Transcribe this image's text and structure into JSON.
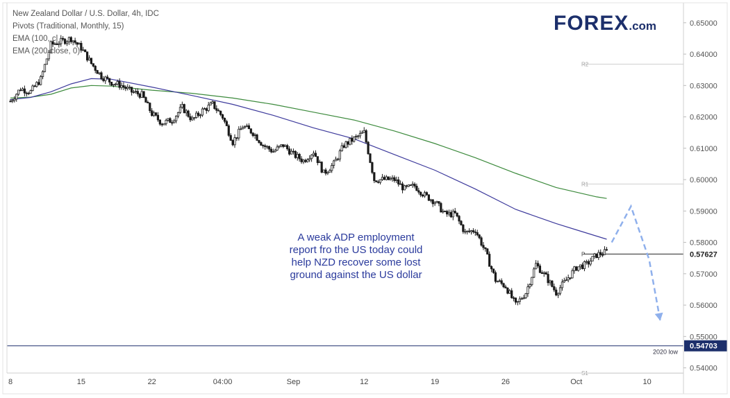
{
  "legend": {
    "line1": "New Zealand Dollar / U.S. Dollar, 4h, IDC",
    "line2": "Pivots (Traditional, Monthly, 15)",
    "line3": "EMA (100, cl",
    "line4": "EMA (200 close, 0)"
  },
  "logo": {
    "main": "FOREX",
    "suffix": ".com"
  },
  "annotation": {
    "lines": [
      "A weak ADP employment",
      "report fro the US today could",
      "help NZD recover some lost",
      "ground against the US dollar"
    ]
  },
  "colors": {
    "ema100": "#3d3a9c",
    "ema200": "#3c8a3c",
    "candle": "#1a1a1a",
    "forecast_arrow": "#8fb0ec",
    "low_line": "#1c2f6b",
    "pivot_label": "#a0a0a0"
  },
  "chart_data": {
    "type": "candlestick",
    "y_axis": {
      "range": [
        0.5357,
        0.6546
      ],
      "ticks": [
        "0.65000",
        "0.64000",
        "0.63000",
        "0.62000",
        "0.61000",
        "0.60000",
        "0.59000",
        "0.58000",
        "0.57000",
        "0.56000",
        "0.55000",
        "0.54000"
      ],
      "tick_values": [
        0.65,
        0.64,
        0.63,
        0.62,
        0.61,
        0.6,
        0.59,
        0.58,
        0.57,
        0.56,
        0.55,
        0.54
      ]
    },
    "x_axis": {
      "ticks": [
        "8",
        "15",
        "22",
        "04:00",
        "Sep",
        "12",
        "19",
        "26",
        "Oct",
        "10"
      ],
      "tick_positions": [
        0,
        7,
        14,
        21,
        28,
        35,
        42,
        49,
        56,
        63
      ]
    },
    "price_label": {
      "text": "0.57627",
      "value": 0.57627
    },
    "low_2020": {
      "label": "2020 low",
      "price_text": "0.54703",
      "value": 0.54703
    },
    "pivots": [
      {
        "label": "R2",
        "value": 0.6368,
        "from_day": 56.7
      },
      {
        "label": "R1",
        "value": 0.5986,
        "from_day": 56.7
      },
      {
        "label": "P",
        "value": 0.57627,
        "from_day": 56.7
      },
      {
        "label": "S1",
        "value": 0.5383,
        "from_day": 56.7
      }
    ],
    "close_path_days": [
      0,
      1,
      2,
      3,
      4,
      5,
      6,
      7,
      8,
      9,
      10,
      11,
      12,
      13,
      14,
      15,
      16,
      17,
      18,
      19,
      20,
      21,
      22,
      23,
      24,
      25,
      26,
      27,
      28,
      29,
      30,
      31,
      32,
      33,
      34,
      35,
      36,
      37,
      38,
      39,
      40,
      41,
      42,
      43,
      44,
      45,
      46,
      47,
      48,
      49,
      50,
      51,
      52,
      53,
      54,
      55,
      56,
      57,
      58,
      59
    ],
    "close_path_prices": [
      0.625,
      0.629,
      0.628,
      0.632,
      0.643,
      0.644,
      0.645,
      0.642,
      0.637,
      0.633,
      0.631,
      0.63,
      0.628,
      0.627,
      0.621,
      0.618,
      0.619,
      0.623,
      0.619,
      0.622,
      0.624,
      0.62,
      0.612,
      0.617,
      0.615,
      0.611,
      0.609,
      0.611,
      0.608,
      0.606,
      0.609,
      0.602,
      0.605,
      0.611,
      0.613,
      0.615,
      0.6,
      0.6,
      0.6,
      0.597,
      0.598,
      0.595,
      0.593,
      0.589,
      0.589,
      0.583,
      0.584,
      0.577,
      0.568,
      0.566,
      0.56,
      0.564,
      0.573,
      0.569,
      0.564,
      0.568,
      0.572,
      0.573,
      0.576,
      0.577
    ],
    "ema100_days": [
      0,
      2,
      4,
      6,
      8,
      10,
      14,
      18,
      22,
      26,
      30,
      34,
      38,
      42,
      46,
      50,
      54,
      56,
      58,
      59
    ],
    "ema100_prices": [
      0.6255,
      0.6262,
      0.628,
      0.6305,
      0.6322,
      0.632,
      0.6295,
      0.6268,
      0.624,
      0.6205,
      0.6165,
      0.613,
      0.608,
      0.603,
      0.597,
      0.5905,
      0.586,
      0.584,
      0.582,
      0.581
    ],
    "ema200_days": [
      0,
      2,
      4,
      6,
      8,
      10,
      14,
      18,
      22,
      26,
      30,
      34,
      38,
      42,
      46,
      50,
      54,
      56,
      58,
      59
    ],
    "ema200_prices": [
      0.626,
      0.6263,
      0.6272,
      0.6292,
      0.63,
      0.6298,
      0.6285,
      0.6275,
      0.626,
      0.624,
      0.6215,
      0.619,
      0.6155,
      0.6115,
      0.607,
      0.602,
      0.5975,
      0.596,
      0.5945,
      0.594
    ],
    "forecast_path_days": [
      59.5,
      61.4,
      63.2,
      64.3
    ],
    "forecast_path_prices": [
      0.58,
      0.5915,
      0.5745,
      0.555
    ]
  }
}
